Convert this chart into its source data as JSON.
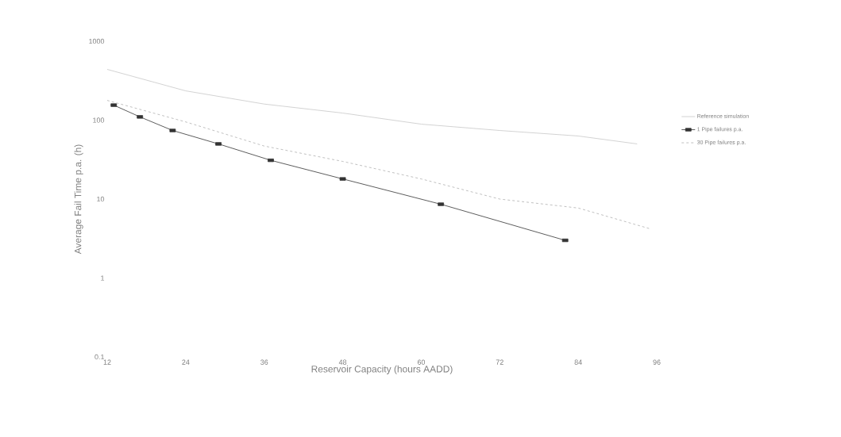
{
  "chart_data": {
    "type": "line",
    "xlabel": "Reservoir Capacity (hours AADD)",
    "ylabel": "Average Fail Time p.a. (h)",
    "log": "y",
    "xlim": [
      12,
      96
    ],
    "ylim": [
      0.1,
      1000
    ],
    "xticks": [
      12,
      24,
      36,
      48,
      60,
      72,
      84,
      96
    ],
    "yticks": [
      0.1,
      1,
      10,
      100,
      1000
    ],
    "legend": "right",
    "series": [
      {
        "name": "Reference simulation",
        "color": "#c8c8c8",
        "line_style": "solid",
        "marker": "none",
        "x": [
          12,
          24,
          36,
          48,
          60,
          72,
          84,
          93
        ],
        "values": [
          440,
          235,
          160,
          123,
          89,
          74,
          63,
          50
        ]
      },
      {
        "name": "1 Pipe failures p.a.",
        "color": "#333333",
        "line_style": "solid",
        "marker": "square",
        "x": [
          13,
          17,
          22,
          29,
          37,
          48,
          63,
          82
        ],
        "values": [
          155,
          110,
          74,
          50,
          31,
          18,
          8.6,
          3.0
        ]
      },
      {
        "name": "30 Pipe failures p.a.",
        "color": "#b0b0b0",
        "line_style": "dashed",
        "marker": "none",
        "x": [
          12,
          24,
          36,
          48,
          60,
          72,
          84,
          95
        ],
        "values": [
          178,
          95,
          47,
          30,
          18,
          10,
          7.7,
          4.2
        ]
      }
    ]
  }
}
